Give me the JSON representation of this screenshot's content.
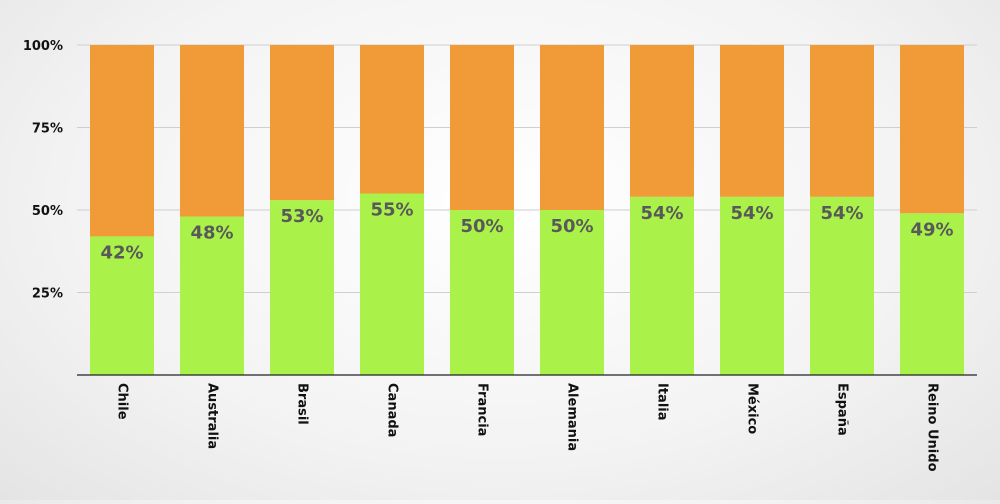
{
  "chart_data": {
    "type": "bar",
    "stacked": true,
    "percent": true,
    "categories": [
      "Chile",
      "Australia",
      "Brasil",
      "Canada",
      "Francia",
      "Alemania",
      "Italia",
      "México",
      "España",
      "Reino Unido"
    ],
    "series": [
      {
        "values": [
          42,
          48,
          53,
          55,
          50,
          50,
          54,
          54,
          54,
          49
        ],
        "color": "#aaf24a"
      },
      {
        "values": [
          58,
          52,
          47,
          45,
          50,
          50,
          46,
          46,
          46,
          51
        ],
        "color": "#f09a38"
      }
    ],
    "data_labels": [
      "42%",
      "48%",
      "53%",
      "55%",
      "50%",
      "50%",
      "54%",
      "54%",
      "54%",
      "49%"
    ],
    "data_label_color": "#595959",
    "ylim": [
      0,
      100
    ],
    "yticks": [
      25,
      50,
      75,
      100
    ],
    "ytick_labels": [
      "25%",
      "50%",
      "75%",
      "100%"
    ],
    "grid": true,
    "grid_color": "#cfcfcf",
    "axis_color": "#222222",
    "title": "",
    "xlabel": "",
    "ylabel": "",
    "legend": "none"
  }
}
